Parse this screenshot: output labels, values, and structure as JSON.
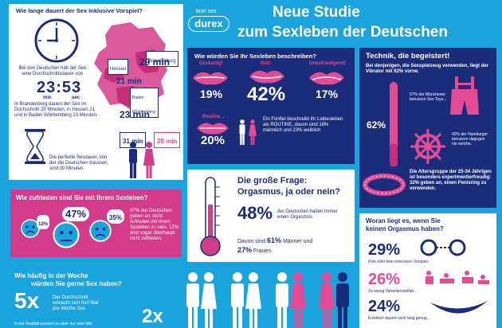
{
  "header": {
    "brand_tagline": "love sex",
    "brand": "durex",
    "title_line1": "Neue Studie",
    "title_line2": "zum Sexleben der Deutschen"
  },
  "q_duration": {
    "question": "Wie lange dauert der Sex inklusive Vorspiel?",
    "avg_text": "Bei den Deutschen hält der Sex eine Durchschnittsdauer von",
    "time": "23:53",
    "unit_min": "min",
    "unit_sec": "sec",
    "regional_text": "In Brandenburg dauert der Sex im Dochschnitt 29 Minuten, in Hessen 21 und in Baden Württemberg 23 Minuten.",
    "regions": [
      {
        "name": "Brandenburg",
        "value": "29 min"
      },
      {
        "name": "Hessen",
        "value": "21 min"
      },
      {
        "name": "Baden Württemberg",
        "value": "23 min"
      }
    ],
    "male_time": "31 min",
    "female_time": "29 min",
    "ideal_text": "Die perfekte Sexdauer, von der die Deutschen träumen, sind 30 Minuten."
  },
  "q_describe": {
    "question": "Wie würden Sie Ihr Sexleben beschreiben?",
    "items": [
      {
        "label": "Großartig!",
        "value": "19%"
      },
      {
        "label": "Gut!",
        "value": "42%"
      },
      {
        "label": "Unbefriedigend!",
        "value": "17%"
      },
      {
        "label": "Routine...",
        "value": "20%"
      }
    ],
    "routine_text": "Ein Fünftel beschreibt ihr Liebesleben als ROUTINE, davon sind 18% männlich und 23% weiblich"
  },
  "q_tech": {
    "title": "Technik, die begeistert!",
    "intro": "Bei denjenigen, die Sexspielzeug verwenden, liegt der Vibrator mit 62% vorne.",
    "vibrator_value": "62%",
    "munich_text": "67% der Münchener benutzen Sex Toys...",
    "hamburg_text": "42% der Hamburger benutzen dagegen nie welche.",
    "age_text": "Die Altersgruppe der 25-34 Jährigen ist besonders experimentierfreudig: 32% geben an, einen Penisring zu verwenden."
  },
  "q_satisfied": {
    "question": "Wie zufrieden sind Sie mit Ihrem Sexleben?",
    "faces": [
      "12%",
      "47%",
      "35%"
    ],
    "text": "47% der Deutschen geben an, nicht zufrieden mit ihrem Sexleben zu sein. 12% sind sogar überhaupt nicht zufrieden."
  },
  "q_orgasm": {
    "title1": "Die große Frage:",
    "title2": "Orgasmus, ja oder nein?",
    "value": "48%",
    "value_text": "der Deutschen haben immer einen Orgasmus.",
    "split_pre": "Davon sind",
    "male_value": "61%",
    "split_mid": "Männer und",
    "female_value": "27%",
    "split_post": "Frauen."
  },
  "q_frequency": {
    "question_line1": "Wie häufig in der Woche",
    "question_line2": "würden Sie gerne Sex haben?",
    "value": "5x",
    "text": "Der Durchschnitt wünscht sich fünf Mal pro Woche Sex.",
    "footnote": "In der Realität passiert es aber nur zwei Mal",
    "real_value": "2x"
  },
  "q_no_orgasm": {
    "question": "Woran liegt es, wenn Sie keinen Orgasmus haben?",
    "items": [
      {
        "value": "29%",
        "text": "Kein oder kein intensives Vorspiel..."
      },
      {
        "value": "26%",
        "text": "Zu wenig Variantenvielfalt..."
      },
      {
        "value": "24%",
        "text": "Errektion dauert nicht lang genug..."
      }
    ]
  },
  "colors": {
    "background": "#1aa3dc",
    "navy": "#1b2d7a",
    "pink": "#d23c8a",
    "light_pink": "#e34b95"
  }
}
